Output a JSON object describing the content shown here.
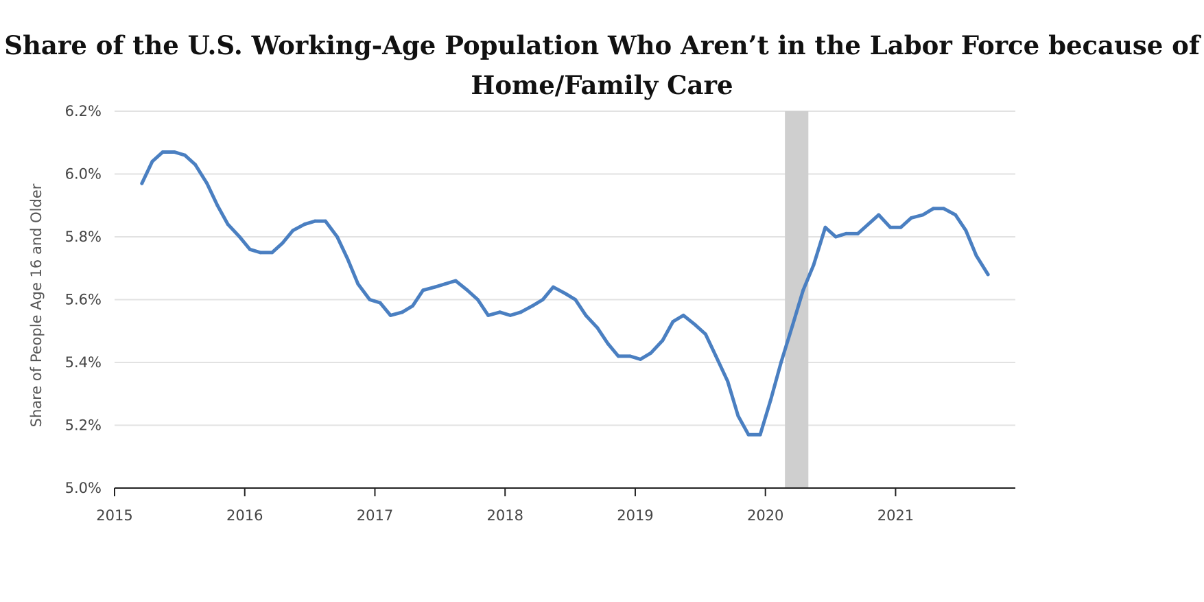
{
  "chart_data": {
    "type": "line",
    "title_lines": [
      "Share of the U.S. Working-Age Population Who Aren’t in the Labor Force because of",
      "Home/Family Care"
    ],
    "xlabel": "",
    "ylabel": "Share of People Age 16 and Older",
    "xlim": [
      2015.0,
      2021.92
    ],
    "ylim": [
      5.0,
      6.2
    ],
    "x_ticks": [
      2015,
      2016,
      2017,
      2018,
      2019,
      2020,
      2021
    ],
    "x_tick_labels": [
      "2015",
      "2016",
      "2017",
      "2018",
      "2019",
      "2020",
      "2021"
    ],
    "y_ticks": [
      5.0,
      5.2,
      5.4,
      5.6,
      5.8,
      6.0,
      6.2
    ],
    "y_tick_labels": [
      "5.0%",
      "5.2%",
      "5.4%",
      "5.6%",
      "5.8%",
      "6.0%",
      "6.2%"
    ],
    "grid": "horizontal",
    "shaded_period": {
      "start": 2020.15,
      "end": 2020.33
    },
    "line_color": "#4a7fc1",
    "shade_color": "#cfcfcf",
    "series": [
      {
        "x": [
          2015.21,
          2015.29,
          2015.37,
          2015.46,
          2015.54,
          2015.62,
          2015.71,
          2015.79,
          2015.87,
          2015.96,
          2016.04,
          2016.12,
          2016.21,
          2016.29,
          2016.37,
          2016.46,
          2016.54,
          2016.62,
          2016.71,
          2016.79,
          2016.87,
          2016.96,
          2017.04,
          2017.12,
          2017.21,
          2017.29,
          2017.37,
          2017.46,
          2017.54,
          2017.62,
          2017.71,
          2017.79,
          2017.87,
          2017.96,
          2018.04,
          2018.12,
          2018.21,
          2018.29,
          2018.37,
          2018.46,
          2018.54,
          2018.62,
          2018.71,
          2018.79,
          2018.87,
          2018.96,
          2019.04,
          2019.12,
          2019.21,
          2019.29,
          2019.37,
          2019.46,
          2019.54,
          2019.62,
          2019.71,
          2019.79,
          2019.87,
          2019.96,
          2020.04,
          2020.12,
          2020.21,
          2020.29,
          2020.37,
          2020.46,
          2020.54,
          2020.62,
          2020.71,
          2020.79,
          2020.87,
          2020.96,
          2021.04,
          2021.12,
          2021.21,
          2021.29,
          2021.37,
          2021.46,
          2021.54,
          2021.62,
          2021.71
        ],
        "values": [
          5.97,
          6.04,
          6.07,
          6.07,
          6.06,
          6.03,
          5.97,
          5.9,
          5.84,
          5.8,
          5.76,
          5.75,
          5.75,
          5.78,
          5.82,
          5.84,
          5.85,
          5.85,
          5.8,
          5.73,
          5.65,
          5.6,
          5.59,
          5.55,
          5.56,
          5.58,
          5.63,
          5.64,
          5.65,
          5.66,
          5.63,
          5.6,
          5.55,
          5.56,
          5.55,
          5.56,
          5.58,
          5.6,
          5.64,
          5.62,
          5.6,
          5.55,
          5.51,
          5.46,
          5.42,
          5.42,
          5.41,
          5.43,
          5.47,
          5.53,
          5.55,
          5.52,
          5.49,
          5.42,
          5.34,
          5.23,
          5.17,
          5.17,
          5.28,
          5.4,
          5.52,
          5.63,
          5.71,
          5.83,
          5.8,
          5.81,
          5.81,
          5.84,
          5.87,
          5.83,
          5.83,
          5.86,
          5.87,
          5.89,
          5.89,
          5.87,
          5.82,
          5.74,
          5.68
        ]
      }
    ]
  }
}
